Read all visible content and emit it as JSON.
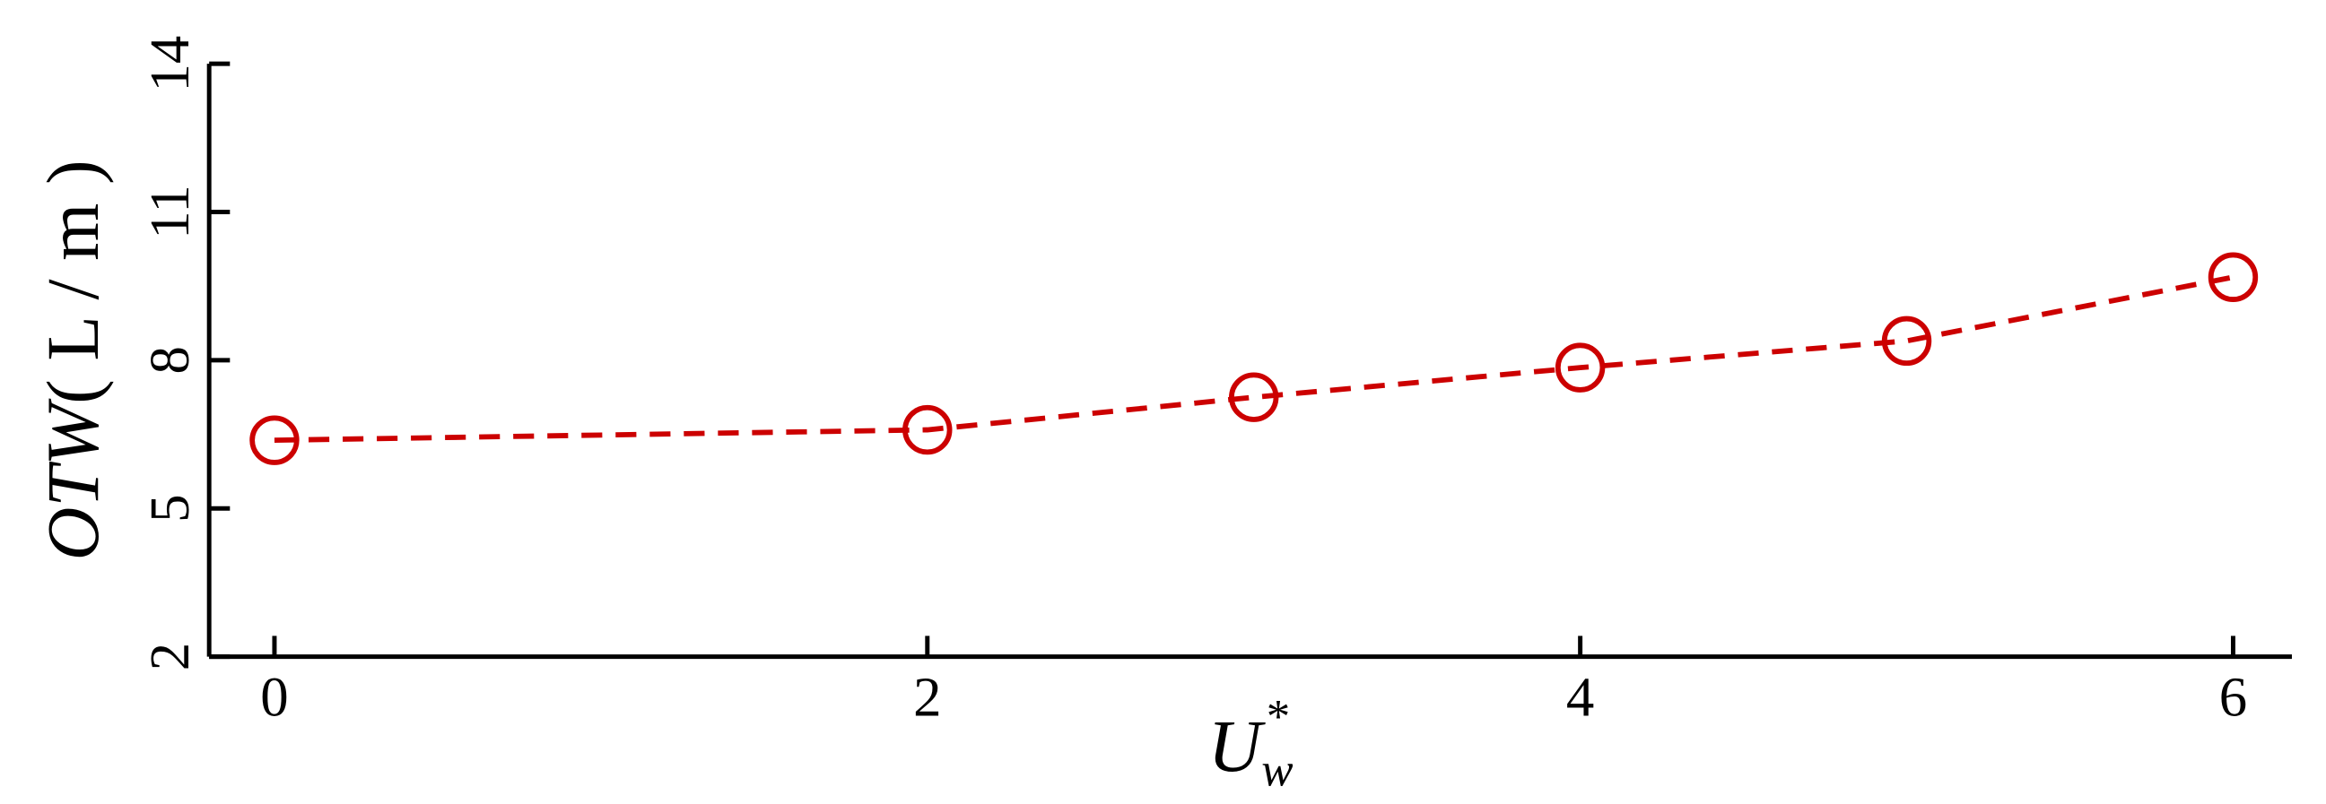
{
  "chart_data": {
    "type": "line",
    "xlabel": {
      "symbol": "U",
      "subscript": "w",
      "superscript": "*"
    },
    "ylabel": {
      "symbol": "OTW",
      "unit": "( L / m )"
    },
    "x": [
      0,
      2,
      3,
      4,
      5,
      6
    ],
    "series": [
      {
        "name": "OTW",
        "color": "#cc0000",
        "values": [
          6.38,
          6.59,
          7.25,
          7.85,
          8.39,
          9.68
        ]
      }
    ],
    "xlim": [
      -0.2,
      6.18
    ],
    "xticks": [
      0,
      2,
      4,
      6
    ],
    "ylim": [
      2,
      14
    ],
    "yticks": [
      2,
      5,
      8,
      11,
      14
    ]
  }
}
